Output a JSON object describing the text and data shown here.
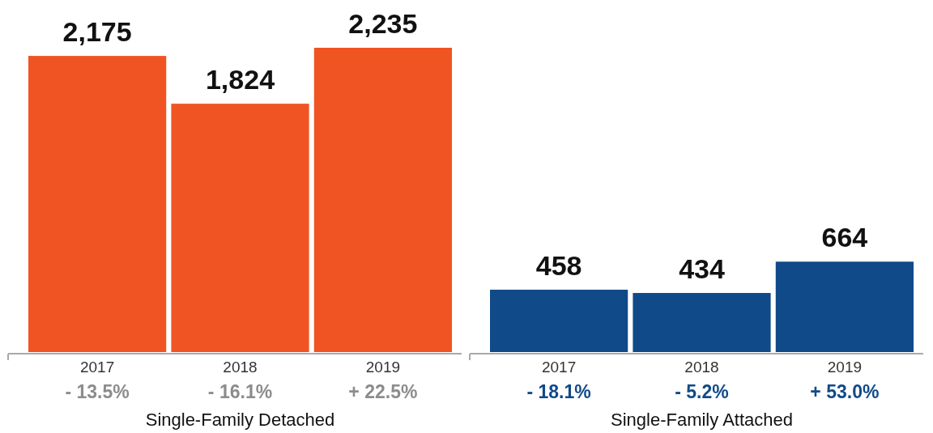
{
  "chart_data": [
    {
      "type": "bar",
      "xlabel": "Single-Family Detached",
      "categories": [
        "2017",
        "2018",
        "2019"
      ],
      "values": [
        2175,
        1824,
        2235
      ],
      "color": "#f05423",
      "value_labels": [
        "2,175",
        "1,824",
        "2,235"
      ],
      "annotations": [
        "- 13.5%",
        "- 16.1%",
        "+ 22.5%"
      ]
    },
    {
      "type": "bar",
      "xlabel": "Single-Family Attached",
      "categories": [
        "2017",
        "2018",
        "2019"
      ],
      "values": [
        458,
        434,
        664
      ],
      "color": "#104a89",
      "value_labels": [
        "458",
        "434",
        "664"
      ],
      "annotations": [
        "- 18.1%",
        "- 5.2%",
        "+ 53.0%"
      ]
    }
  ]
}
